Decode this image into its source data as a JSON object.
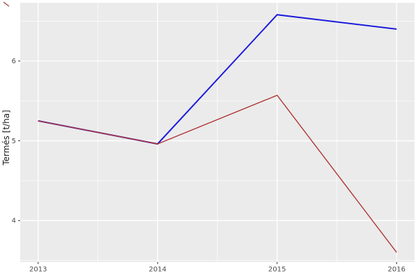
{
  "figure": {
    "background": "#ffffff",
    "panel_background": "#ebebeb",
    "grid_color": "#ffffff",
    "tick_label_color": "#4d4d4d",
    "axis_title_color": "#1a1a1a",
    "tick_mark_color": "#333333"
  },
  "chart_data": {
    "type": "line",
    "title": "",
    "xlabel": "",
    "ylabel": "Termés [t/ha]",
    "x": [
      2013,
      2014,
      2015,
      2016
    ],
    "series": [
      {
        "name": "blue-series",
        "color": "#1c1cdc",
        "values": [
          5.25,
          4.96,
          6.58,
          6.4
        ]
      },
      {
        "name": "darkred-series",
        "color": "#b03434",
        "values": [
          5.25,
          4.96,
          5.57,
          3.6
        ]
      }
    ],
    "xlim": [
      2012.85,
      2016.15
    ],
    "ylim": [
      3.48,
      6.73
    ],
    "x_major_ticks": [
      2013,
      2014,
      2015,
      2016
    ],
    "y_major_ticks": [
      4,
      5,
      6
    ],
    "x_minor_ticks": [
      2013.5,
      2014.5,
      2015.5
    ],
    "y_minor_ticks": [
      3.5,
      4.5,
      5.5,
      6.5
    ],
    "grid": true,
    "legend_position": "none",
    "stray_mark": {
      "present": true,
      "color": "#a34444"
    }
  }
}
